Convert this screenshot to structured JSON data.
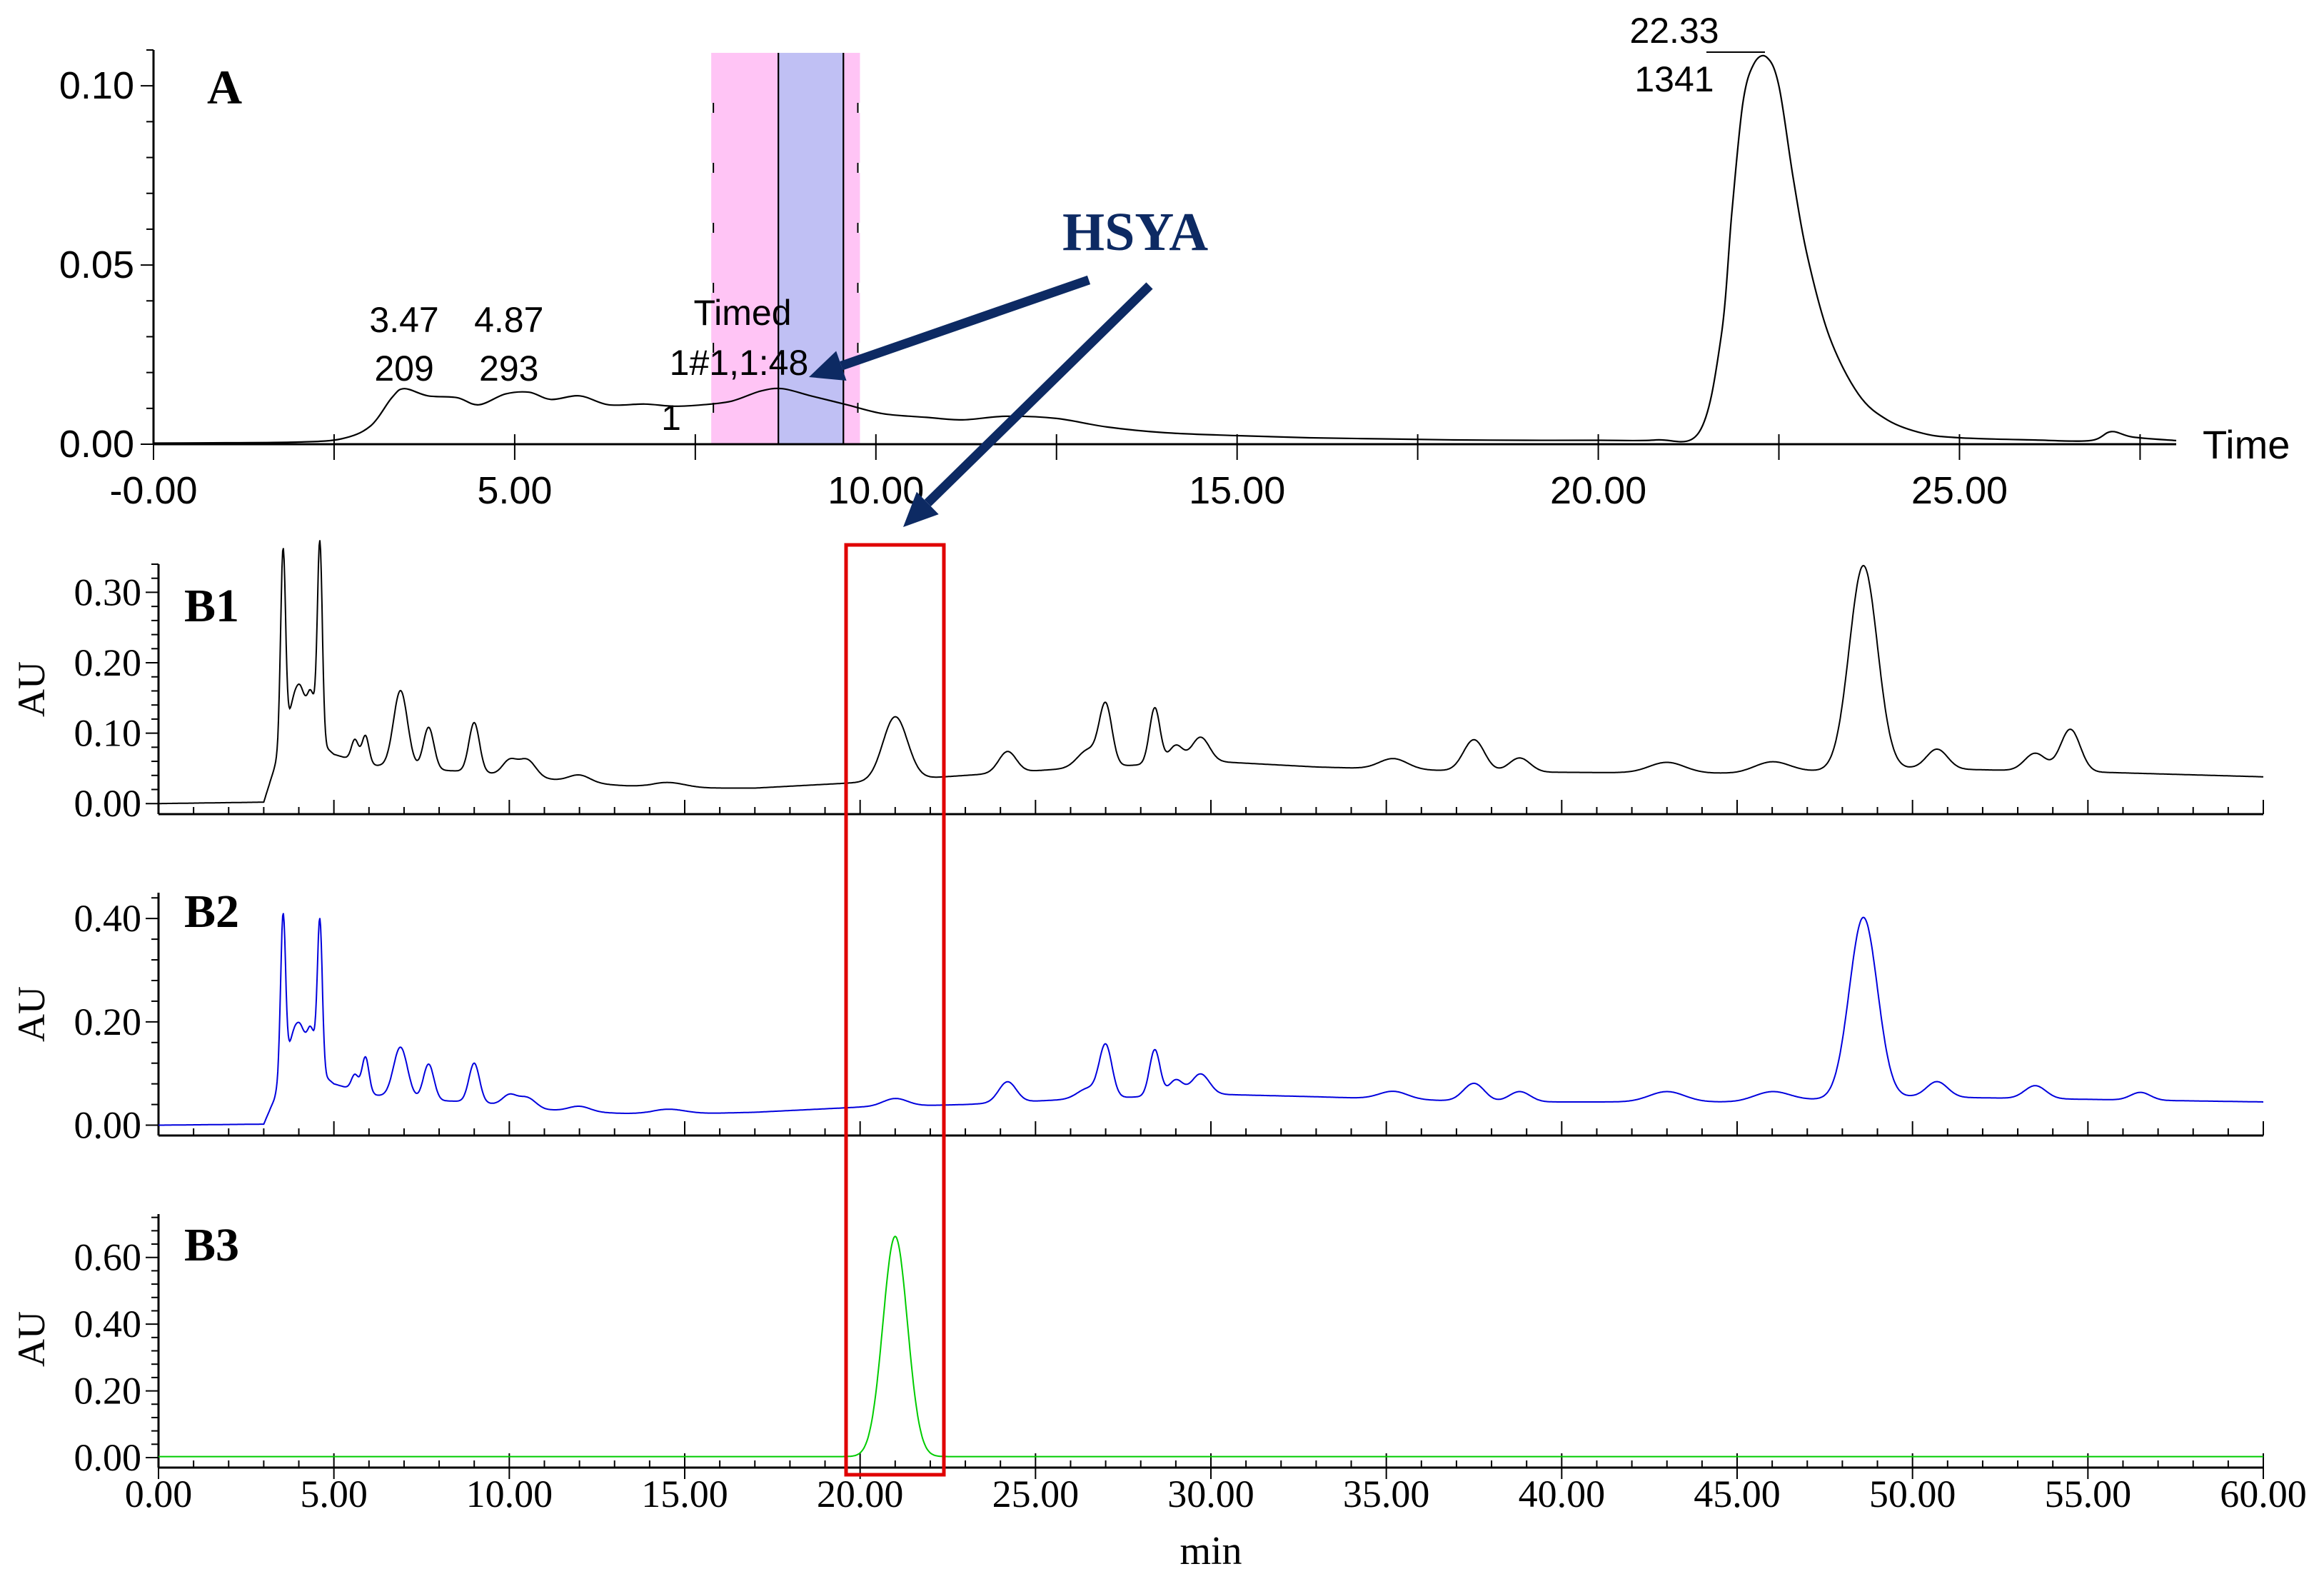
{
  "chart_data": [
    {
      "panel": "A",
      "type": "line",
      "x_axis": {
        "range": [
          0,
          28
        ],
        "ticks": [
          0,
          5,
          10,
          15,
          20,
          25
        ],
        "tick_labels": [
          "-0.00",
          "5.00",
          "10.00",
          "15.00",
          "20.00",
          "25.00"
        ],
        "minor_step": 2.5,
        "label": "Time"
      },
      "y_axis": {
        "range": [
          0,
          0.11
        ],
        "ticks": [
          0,
          0.05,
          0.1
        ],
        "tick_labels": [
          "0.00",
          "0.05",
          "0.10"
        ]
      },
      "series": [
        {
          "color": "#000000",
          "x": [
            0,
            1,
            2,
            2.6,
            3.0,
            3.3,
            3.47,
            3.8,
            4.2,
            4.5,
            4.87,
            5.2,
            5.5,
            5.9,
            6.3,
            6.8,
            7.2,
            7.6,
            8.0,
            8.4,
            8.7,
            9.1,
            9.6,
            10.1,
            10.7,
            11.2,
            11.8,
            12.5,
            13.2,
            14,
            15,
            16,
            17,
            18,
            19,
            20,
            20.8,
            21.4,
            21.7,
            21.85,
            22.0,
            22.15,
            22.33,
            22.5,
            22.7,
            22.9,
            23.2,
            23.6,
            24.0,
            24.5,
            25,
            26,
            26.8,
            27.1,
            27.4,
            28
          ],
          "y": [
            0.0003,
            0.0004,
            0.0006,
            0.0015,
            0.005,
            0.013,
            0.0155,
            0.0135,
            0.013,
            0.011,
            0.014,
            0.0145,
            0.0125,
            0.0135,
            0.011,
            0.0112,
            0.0106,
            0.011,
            0.012,
            0.0148,
            0.0155,
            0.0135,
            0.011,
            0.0085,
            0.0075,
            0.0068,
            0.0078,
            0.0072,
            0.0048,
            0.0032,
            0.0024,
            0.0018,
            0.0015,
            0.0012,
            0.0011,
            0.0011,
            0.0012,
            0.0035,
            0.03,
            0.065,
            0.095,
            0.106,
            0.108,
            0.1,
            0.074,
            0.052,
            0.03,
            0.014,
            0.0068,
            0.003,
            0.0018,
            0.0012,
            0.001,
            0.0035,
            0.002,
            0.001
          ]
        }
      ],
      "peak_labels": [
        {
          "time": "3.47",
          "area": "209",
          "x": 3.47
        },
        {
          "time": "4.87",
          "area": "293",
          "x": 4.87
        },
        {
          "time": "22.33",
          "area": "1341",
          "x": 22.33
        }
      ],
      "event_label": {
        "lines": [
          "Timed",
          "1#1,1:48",
          "1"
        ],
        "x": 8.1
      },
      "highlight": {
        "windows": [
          {
            "from": 7.75,
            "to": 8.65,
            "color": "#ffc4f5"
          },
          {
            "from": 8.65,
            "to": 9.55,
            "color": "#c0c0f4"
          },
          {
            "from": 9.55,
            "to": 9.75,
            "color": "#ffc4f5"
          }
        ]
      }
    },
    {
      "panel": "B1",
      "type": "line",
      "x_axis": {
        "range": [
          0,
          60
        ],
        "ticks": [
          0,
          5,
          10,
          15,
          20,
          25,
          30,
          35,
          40,
          45,
          50,
          55,
          60
        ],
        "minor_step": 1
      },
      "y_axis": {
        "label": "AU",
        "range": [
          -0.015,
          0.34
        ],
        "ticks": [
          0,
          0.1,
          0.2,
          0.3
        ],
        "tick_labels": [
          "0.00",
          "0.10",
          "0.20",
          "0.30"
        ]
      },
      "baseline": [
        [
          0,
          0.0
        ],
        [
          3,
          0.002
        ],
        [
          3.3,
          0.05
        ],
        [
          3.6,
          0.1
        ],
        [
          4.3,
          0.1
        ],
        [
          5,
          0.07
        ],
        [
          6,
          0.055
        ],
        [
          7,
          0.05
        ],
        [
          9,
          0.045
        ],
        [
          11,
          0.035
        ],
        [
          14,
          0.022
        ],
        [
          17,
          0.022
        ],
        [
          20,
          0.03
        ],
        [
          23,
          0.04
        ],
        [
          26,
          0.05
        ],
        [
          30,
          0.06
        ],
        [
          33,
          0.052
        ],
        [
          38,
          0.045
        ],
        [
          45,
          0.043
        ],
        [
          50,
          0.05
        ],
        [
          55,
          0.045
        ],
        [
          60,
          0.038
        ]
      ],
      "peaks": [
        [
          3.55,
          0.27,
          0.07
        ],
        [
          3.85,
          0.04,
          0.12
        ],
        [
          4.05,
          0.055,
          0.12
        ],
        [
          4.35,
          0.06,
          0.12
        ],
        [
          4.6,
          0.28,
          0.07
        ],
        [
          5.6,
          0.03,
          0.1
        ],
        [
          5.9,
          0.04,
          0.1
        ],
        [
          6.9,
          0.11,
          0.2
        ],
        [
          7.7,
          0.06,
          0.15
        ],
        [
          9.0,
          0.07,
          0.15
        ],
        [
          10.0,
          0.02,
          0.2
        ],
        [
          10.5,
          0.025,
          0.25
        ],
        [
          12,
          0.01,
          0.3
        ],
        [
          14.5,
          0.008,
          0.5
        ],
        [
          21.0,
          0.09,
          0.35
        ],
        [
          24.2,
          0.03,
          0.25
        ],
        [
          26.5,
          0.025,
          0.3
        ],
        [
          27.0,
          0.085,
          0.18
        ],
        [
          28.4,
          0.08,
          0.15
        ],
        [
          29.0,
          0.025,
          0.2
        ],
        [
          29.7,
          0.035,
          0.25
        ],
        [
          35.2,
          0.015,
          0.4
        ],
        [
          37.5,
          0.045,
          0.3
        ],
        [
          38.8,
          0.02,
          0.3
        ],
        [
          43,
          0.015,
          0.5
        ],
        [
          46,
          0.015,
          0.5
        ],
        [
          48.6,
          0.29,
          0.4
        ],
        [
          50.7,
          0.028,
          0.3
        ],
        [
          53.5,
          0.025,
          0.3
        ],
        [
          54.5,
          0.06,
          0.28
        ]
      ],
      "color": "#000000"
    },
    {
      "panel": "B2",
      "type": "line",
      "x_axis": {
        "range": [
          0,
          60
        ],
        "ticks": [
          0,
          5,
          10,
          15,
          20,
          25,
          30,
          35,
          40,
          45,
          50,
          55,
          60
        ],
        "minor_step": 1
      },
      "y_axis": {
        "label": "AU",
        "range": [
          -0.02,
          0.45
        ],
        "ticks": [
          0,
          0.2,
          0.4
        ],
        "tick_labels": [
          "0.00",
          "0.20",
          "0.40"
        ]
      },
      "baseline": [
        [
          0,
          0.0
        ],
        [
          3,
          0.002
        ],
        [
          3.3,
          0.05
        ],
        [
          3.6,
          0.12
        ],
        [
          4.3,
          0.12
        ],
        [
          5,
          0.08
        ],
        [
          6,
          0.06
        ],
        [
          7,
          0.05
        ],
        [
          9,
          0.045
        ],
        [
          11,
          0.03
        ],
        [
          14,
          0.02
        ],
        [
          17,
          0.025
        ],
        [
          20,
          0.035
        ],
        [
          23,
          0.04
        ],
        [
          26,
          0.05
        ],
        [
          30,
          0.06
        ],
        [
          33,
          0.055
        ],
        [
          38,
          0.045
        ],
        [
          45,
          0.045
        ],
        [
          50,
          0.055
        ],
        [
          55,
          0.05
        ],
        [
          60,
          0.045
        ]
      ],
      "peaks": [
        [
          3.55,
          0.3,
          0.07
        ],
        [
          3.85,
          0.05,
          0.12
        ],
        [
          4.05,
          0.06,
          0.12
        ],
        [
          4.35,
          0.07,
          0.12
        ],
        [
          4.6,
          0.29,
          0.07
        ],
        [
          5.6,
          0.03,
          0.1
        ],
        [
          5.9,
          0.07,
          0.1
        ],
        [
          6.9,
          0.1,
          0.2
        ],
        [
          7.7,
          0.07,
          0.15
        ],
        [
          9.0,
          0.075,
          0.15
        ],
        [
          10.0,
          0.02,
          0.2
        ],
        [
          10.5,
          0.02,
          0.25
        ],
        [
          12,
          0.01,
          0.3
        ],
        [
          14.5,
          0.01,
          0.5
        ],
        [
          21.0,
          0.015,
          0.35
        ],
        [
          24.2,
          0.04,
          0.25
        ],
        [
          26.5,
          0.02,
          0.3
        ],
        [
          27.0,
          0.1,
          0.18
        ],
        [
          28.4,
          0.09,
          0.15
        ],
        [
          29.0,
          0.03,
          0.2
        ],
        [
          29.7,
          0.04,
          0.25
        ],
        [
          35.2,
          0.015,
          0.4
        ],
        [
          37.5,
          0.035,
          0.3
        ],
        [
          38.8,
          0.02,
          0.3
        ],
        [
          43,
          0.02,
          0.5
        ],
        [
          46,
          0.018,
          0.5
        ],
        [
          48.6,
          0.35,
          0.4
        ],
        [
          50.7,
          0.03,
          0.3
        ],
        [
          53.5,
          0.025,
          0.3
        ],
        [
          56.5,
          0.015,
          0.28
        ]
      ],
      "color": "#0000dd"
    },
    {
      "panel": "B3",
      "type": "line",
      "x_axis": {
        "range": [
          0,
          60
        ],
        "ticks": [
          0,
          5,
          10,
          15,
          20,
          25,
          30,
          35,
          40,
          45,
          50,
          55,
          60
        ],
        "tick_labels": [
          "0.00",
          "5.00",
          "10.00",
          "15.00",
          "20.00",
          "25.00",
          "30.00",
          "35.00",
          "40.00",
          "45.00",
          "50.00",
          "55.00",
          "60.00"
        ],
        "minor_step": 1,
        "label": "min"
      },
      "y_axis": {
        "label": "AU",
        "range": [
          -0.03,
          0.73
        ],
        "ticks": [
          0,
          0.2,
          0.4,
          0.6
        ],
        "tick_labels": [
          "0.00",
          "0.20",
          "0.40",
          "0.60"
        ]
      },
      "baseline": [
        [
          0,
          0.003
        ],
        [
          60,
          0.003
        ]
      ],
      "peaks": [
        [
          21.0,
          0.66,
          0.35
        ]
      ],
      "color": "#00cc00"
    }
  ],
  "labels": {
    "panel_a": "A",
    "panel_b1": "B1",
    "panel_b2": "B2",
    "panel_b3": "B3",
    "compound": "HSYA"
  },
  "colors": {
    "arrow": "#0d2a63",
    "box": "#e00000"
  }
}
